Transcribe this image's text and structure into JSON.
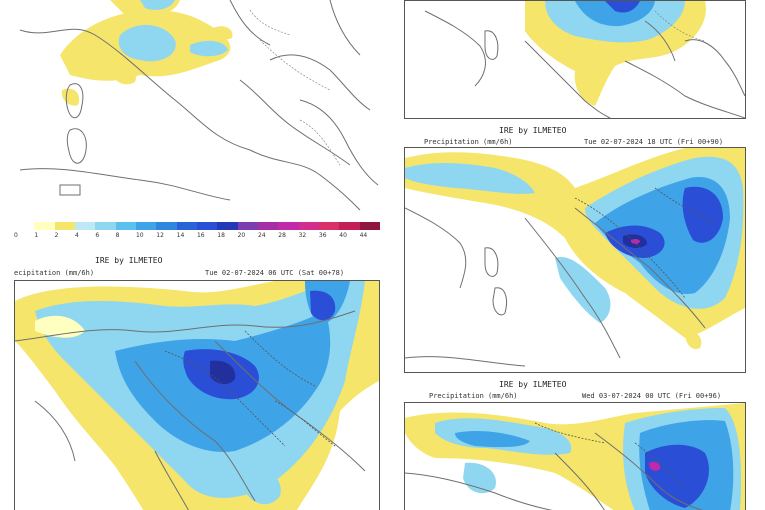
{
  "colors": {
    "yellow": "#f6e56b",
    "lightblue": "#8fd6f0",
    "blue": "#3fa3e8",
    "darkblue": "#2a4fd6",
    "navy": "#21309c",
    "magenta": "#c02aa8",
    "coast": "#6f6f6f"
  },
  "scale": {
    "values": [
      "0",
      "1",
      "2",
      "4",
      "6",
      "8",
      "10",
      "12",
      "14",
      "16",
      "18",
      "20",
      "24",
      "28",
      "32",
      "36",
      "40",
      "44"
    ],
    "colors": [
      "#ffffff",
      "#ffffbf",
      "#f6e56b",
      "#bfe8f7",
      "#8fd6f0",
      "#5bc0ee",
      "#3fa3e8",
      "#2f86df",
      "#2a63d8",
      "#2a4fd6",
      "#2538b5",
      "#7d3fb0",
      "#a52fa5",
      "#c02aa8",
      "#d02f8d",
      "#d9306a",
      "#c21e57",
      "#8e1740"
    ]
  },
  "panels": {
    "bottom_left": {
      "title": "IRE by ILMETEO",
      "caption_left": "ecipitation  (mm/6h)",
      "caption_right": "Tue 02-07-2024 06 UTC (Sat 00+78)"
    },
    "mid_right": {
      "title": "IRE by ILMETEO",
      "caption_left": "Precipitation  (mm/6h)",
      "caption_right": "Tue 02-07-2024 18 UTC (Fri 00+90)"
    },
    "bottom_right": {
      "title": "IRE by ILMETEO",
      "caption_left": "Precipitation  (mm/6h)",
      "caption_right": "Wed 03-07-2024 00 UTC (Fri 00+96)"
    }
  }
}
